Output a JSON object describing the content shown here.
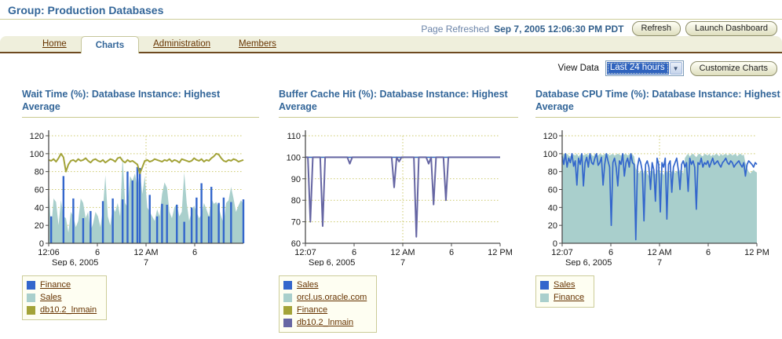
{
  "header": {
    "title": "Group: Production Databases",
    "page_refreshed_label": "Page Refreshed",
    "page_refreshed_value": "Sep 7, 2005 12:06:30 PM PDT",
    "refresh_button": "Refresh",
    "launch_dashboard_button": "Launch Dashboard"
  },
  "tabs": [
    {
      "label": "Home",
      "active": false
    },
    {
      "label": "Charts",
      "active": true
    },
    {
      "label": "Administration",
      "active": false
    },
    {
      "label": "Members",
      "active": false
    }
  ],
  "controls": {
    "view_data_label": "View Data",
    "view_data_value": "Last 24 hours",
    "customize_button": "Customize Charts"
  },
  "colors": {
    "accent_blue": "#336699",
    "link_brown": "#663300",
    "tan_rule": "#CCCC99",
    "grid_dotted": "#CCC96B",
    "axis": "#4D4D4D",
    "series_blue": "#3366CC",
    "series_cyan": "#A9CFCC",
    "series_olive": "#A3A338",
    "series_slate": "#6666A3"
  },
  "chart_data": [
    {
      "type": "area",
      "title": "Wait Time (%): Database Instance: Highest Average",
      "ylabel": "Wait Time (%)",
      "ylim": [
        0,
        120
      ],
      "yticks": [
        0,
        20,
        40,
        60,
        80,
        100,
        120
      ],
      "xticks": [
        {
          "pos": 0.0,
          "label": "12:06",
          "sub": "Sep 6, 2005"
        },
        {
          "pos": 0.25,
          "label": "6"
        },
        {
          "pos": 0.5,
          "label": "12 AM",
          "sub": "7"
        },
        {
          "pos": 0.75,
          "label": "6"
        }
      ],
      "x_gridlines": [
        0.5
      ],
      "legend": [
        {
          "label": "Finance",
          "color": "#3366CC"
        },
        {
          "label": "Sales",
          "color": "#A9CFCC"
        },
        {
          "label": "db10.2_lnmain",
          "color": "#A3A338"
        }
      ],
      "series": [
        {
          "name": "Sales",
          "color": "#A9CFCC",
          "style": "area",
          "values": [
            62,
            15,
            50,
            46,
            20,
            48,
            30,
            28,
            12,
            35,
            30,
            18,
            25,
            50,
            45,
            28,
            35,
            14,
            22,
            35,
            30,
            18,
            38,
            76,
            30,
            20,
            40,
            35,
            45,
            30,
            97,
            45,
            40,
            75,
            70,
            78,
            62,
            80,
            55,
            75,
            40,
            35,
            30,
            25,
            38,
            30,
            55,
            68,
            62,
            35,
            28,
            40,
            44,
            30,
            35,
            79,
            45,
            25,
            35,
            42,
            35,
            28,
            32,
            45,
            38,
            30,
            50,
            44,
            46,
            40,
            30,
            22,
            45,
            48,
            63,
            50,
            35,
            42,
            48,
            44
          ]
        },
        {
          "name": "Finance",
          "color": "#3366CC",
          "style": "bars",
          "values": [
            0,
            30,
            0,
            0,
            0,
            0,
            75,
            0,
            0,
            0,
            50,
            0,
            0,
            0,
            28,
            0,
            0,
            36,
            0,
            0,
            0,
            0,
            47,
            0,
            0,
            0,
            50,
            0,
            0,
            0,
            49,
            0,
            80,
            0,
            70,
            0,
            85,
            84,
            0,
            0,
            0,
            54,
            0,
            0,
            30,
            0,
            44,
            0,
            43,
            0,
            0,
            0,
            43,
            0,
            0,
            24,
            0,
            0,
            40,
            0,
            51,
            0,
            67,
            0,
            0,
            30,
            63,
            0,
            0,
            45,
            0,
            51,
            0,
            0,
            46,
            0,
            0,
            0,
            0,
            49
          ]
        },
        {
          "name": "db10.2_lnmain",
          "color": "#A3A338",
          "style": "line",
          "width": 2,
          "values": [
            93,
            92,
            94,
            91,
            95,
            100,
            96,
            80,
            88,
            92,
            93,
            91,
            94,
            92,
            93,
            95,
            92,
            90,
            93,
            94,
            92,
            91,
            93,
            90,
            92,
            94,
            93,
            91,
            95,
            96,
            92,
            90,
            93,
            91,
            92,
            90,
            88,
            78,
            85,
            92,
            93,
            91,
            92,
            94,
            93,
            92,
            91,
            93,
            92,
            94,
            91,
            93,
            92,
            90,
            94,
            93,
            92,
            91,
            92,
            95,
            93,
            92,
            94,
            91,
            93,
            92,
            95,
            97,
            100,
            99,
            95,
            92,
            91,
            93,
            92,
            94,
            93,
            91,
            92,
            93
          ]
        }
      ]
    },
    {
      "type": "line",
      "title": "Buffer Cache Hit (%): Database Instance: Highest Average",
      "ylabel": "Buffer Cache Hit (%)",
      "ylim": [
        60,
        110
      ],
      "yticks": [
        60,
        70,
        80,
        90,
        100,
        110
      ],
      "xticks": [
        {
          "pos": 0.0,
          "label": "12:07",
          "sub": "Sep 6, 2005"
        },
        {
          "pos": 0.25,
          "label": "6"
        },
        {
          "pos": 0.5,
          "label": "12 AM",
          "sub": "7"
        },
        {
          "pos": 0.75,
          "label": "6"
        },
        {
          "pos": 1.0,
          "label": "12 PM"
        }
      ],
      "x_gridlines": [
        0.5
      ],
      "legend": [
        {
          "label": "Sales",
          "color": "#3366CC"
        },
        {
          "label": "orcl.us.oracle.com",
          "color": "#A9CFCC"
        },
        {
          "label": "Finance",
          "color": "#A3A338"
        },
        {
          "label": "db10.2_lnmain",
          "color": "#6666A3"
        }
      ],
      "series": [
        {
          "name": "orcl.us.oracle.com",
          "color": "#A9CFCC",
          "style": "line",
          "width": 1.4,
          "values": [
            100,
            100,
            100,
            100,
            100,
            100,
            100,
            100,
            100,
            100,
            100,
            100,
            100,
            100,
            100,
            100,
            100,
            100,
            100,
            100,
            100,
            100,
            100,
            100,
            100,
            100,
            100,
            100,
            100,
            100,
            100,
            100,
            100,
            100,
            100,
            100,
            100,
            100,
            100,
            100,
            100,
            100,
            100,
            100,
            100,
            100,
            100,
            100,
            100,
            100,
            100,
            100,
            100,
            100,
            100,
            100,
            100,
            100,
            100,
            100,
            100,
            100,
            100,
            100,
            100,
            100,
            100,
            100,
            100,
            100,
            100,
            100,
            100,
            100,
            100,
            100,
            100,
            100,
            100,
            100
          ]
        },
        {
          "name": "Finance",
          "color": "#A3A338",
          "style": "line",
          "width": 1.4,
          "values": [
            100,
            100,
            100,
            100,
            100,
            100,
            100,
            100,
            100,
            100,
            100,
            100,
            100,
            100,
            100,
            100,
            100,
            100,
            100,
            100,
            100,
            100,
            100,
            100,
            100,
            100,
            100,
            100,
            100,
            100,
            100,
            100,
            100,
            100,
            100,
            100,
            100,
            100,
            100,
            100,
            100,
            100,
            100,
            100,
            100,
            100,
            100,
            100,
            100,
            100,
            100,
            100,
            100,
            100,
            100,
            100,
            100,
            100,
            100,
            100,
            100,
            100,
            100,
            100,
            100,
            100,
            100,
            100,
            100,
            100,
            100,
            100,
            100,
            100,
            100,
            100,
            100,
            100,
            100,
            100
          ]
        },
        {
          "name": "Sales",
          "color": "#3366CC",
          "style": "line",
          "width": 1.4,
          "values": [
            100,
            100,
            100,
            100,
            100,
            100,
            100,
            100,
            100,
            100,
            100,
            100,
            100,
            100,
            100,
            100,
            100,
            100,
            100,
            100,
            100,
            100,
            100,
            100,
            100,
            100,
            100,
            100,
            100,
            100,
            100,
            100,
            100,
            100,
            100,
            100,
            100,
            100,
            100,
            100,
            100,
            100,
            100,
            100,
            100,
            100,
            100,
            100,
            100,
            100,
            100,
            100,
            100,
            100,
            100,
            100,
            100,
            100,
            100,
            100,
            100,
            100,
            100,
            100,
            100,
            100,
            100,
            100,
            100,
            100,
            100,
            100,
            100,
            100,
            100,
            100,
            100,
            100,
            100,
            100
          ]
        },
        {
          "name": "db10.2_lnmain",
          "color": "#6666A3",
          "style": "line",
          "width": 2,
          "values": [
            100,
            100,
            70,
            100,
            100,
            100,
            100,
            68,
            100,
            100,
            100,
            100,
            100,
            100,
            100,
            100,
            100,
            100,
            97,
            100,
            100,
            100,
            100,
            100,
            100,
            100,
            100,
            100,
            100,
            100,
            100,
            100,
            100,
            100,
            100,
            100,
            86,
            100,
            98,
            100,
            100,
            100,
            100,
            100,
            100,
            63,
            100,
            100,
            100,
            100,
            97,
            100,
            78,
            100,
            100,
            100,
            100,
            80,
            100,
            100,
            100,
            100,
            100,
            100,
            100,
            100,
            100,
            100,
            100,
            100,
            100,
            100,
            100,
            100,
            100,
            100,
            100,
            100,
            100,
            100
          ]
        }
      ]
    },
    {
      "type": "line",
      "title": "Database CPU Time (%): Database Instance: Highest Average",
      "ylabel": "Database CPU Time (%)",
      "ylim": [
        0,
        120
      ],
      "yticks": [
        0,
        20,
        40,
        60,
        80,
        100,
        120
      ],
      "xticks": [
        {
          "pos": 0.0,
          "label": "12:07",
          "sub": "Sep 6, 2005"
        },
        {
          "pos": 0.25,
          "label": "6"
        },
        {
          "pos": 0.5,
          "label": "12 AM",
          "sub": "7"
        },
        {
          "pos": 0.75,
          "label": "6"
        },
        {
          "pos": 1.0,
          "label": "12 PM"
        }
      ],
      "x_gridlines": [
        0.5
      ],
      "legend": [
        {
          "label": "Sales",
          "color": "#3366CC"
        },
        {
          "label": "Finance",
          "color": "#A9CFCC"
        }
      ],
      "series": [
        {
          "name": "Finance",
          "color": "#A9CFCC",
          "style": "area",
          "values": [
            98,
            100,
            99,
            100,
            98,
            97,
            100,
            99,
            98,
            100,
            97,
            99,
            100,
            98,
            99,
            100,
            98,
            100,
            99,
            97,
            100,
            99,
            98,
            100,
            99,
            98,
            100,
            99,
            100,
            98,
            99,
            100,
            98,
            99,
            100,
            99,
            98,
            100,
            99,
            100,
            98,
            99,
            100,
            99,
            97,
            84,
            80,
            78,
            82,
            76,
            80,
            84,
            78,
            75,
            80,
            82,
            79,
            77,
            81,
            83,
            78,
            80,
            76,
            82,
            79,
            81,
            77,
            80,
            83,
            78,
            81,
            79,
            82,
            80,
            78,
            95,
            98,
            100,
            97,
            99,
            100,
            98,
            96,
            99,
            100,
            98,
            97,
            100,
            99,
            98,
            100,
            97,
            99,
            98,
            100,
            99,
            97,
            100,
            98,
            99,
            100,
            98,
            99,
            100,
            98,
            99,
            100,
            97,
            99,
            100,
            98,
            99,
            90,
            84,
            80,
            78,
            80,
            82,
            80,
            79
          ]
        },
        {
          "name": "Sales",
          "color": "#3366CC",
          "style": "line",
          "width": 1.7,
          "values": [
            97,
            88,
            100,
            85,
            95,
            90,
            100,
            86,
            92,
            65,
            95,
            88,
            100,
            64,
            90,
            96,
            85,
            100,
            90,
            88,
            95,
            100,
            87,
            90,
            96,
            65,
            88,
            100,
            92,
            85,
            20,
            90,
            95,
            85,
            64,
            92,
            88,
            100,
            75,
            90,
            95,
            85,
            100,
            90,
            88,
            4,
            85,
            95,
            90,
            80,
            25,
            88,
            92,
            85,
            60,
            90,
            82,
            47,
            95,
            88,
            35,
            90,
            85,
            95,
            27,
            88,
            92,
            57,
            85,
            90,
            95,
            82,
            60,
            88,
            92,
            85,
            90,
            58,
            95,
            88,
            92,
            85,
            38,
            90,
            88,
            95,
            85,
            90,
            88,
            92,
            85,
            90,
            95,
            88,
            90,
            92,
            88,
            85,
            90,
            92,
            95,
            90,
            88,
            92,
            90,
            85,
            88,
            90,
            92,
            88,
            85,
            90,
            75,
            88,
            92,
            90,
            88,
            85,
            90,
            88
          ]
        }
      ]
    }
  ]
}
